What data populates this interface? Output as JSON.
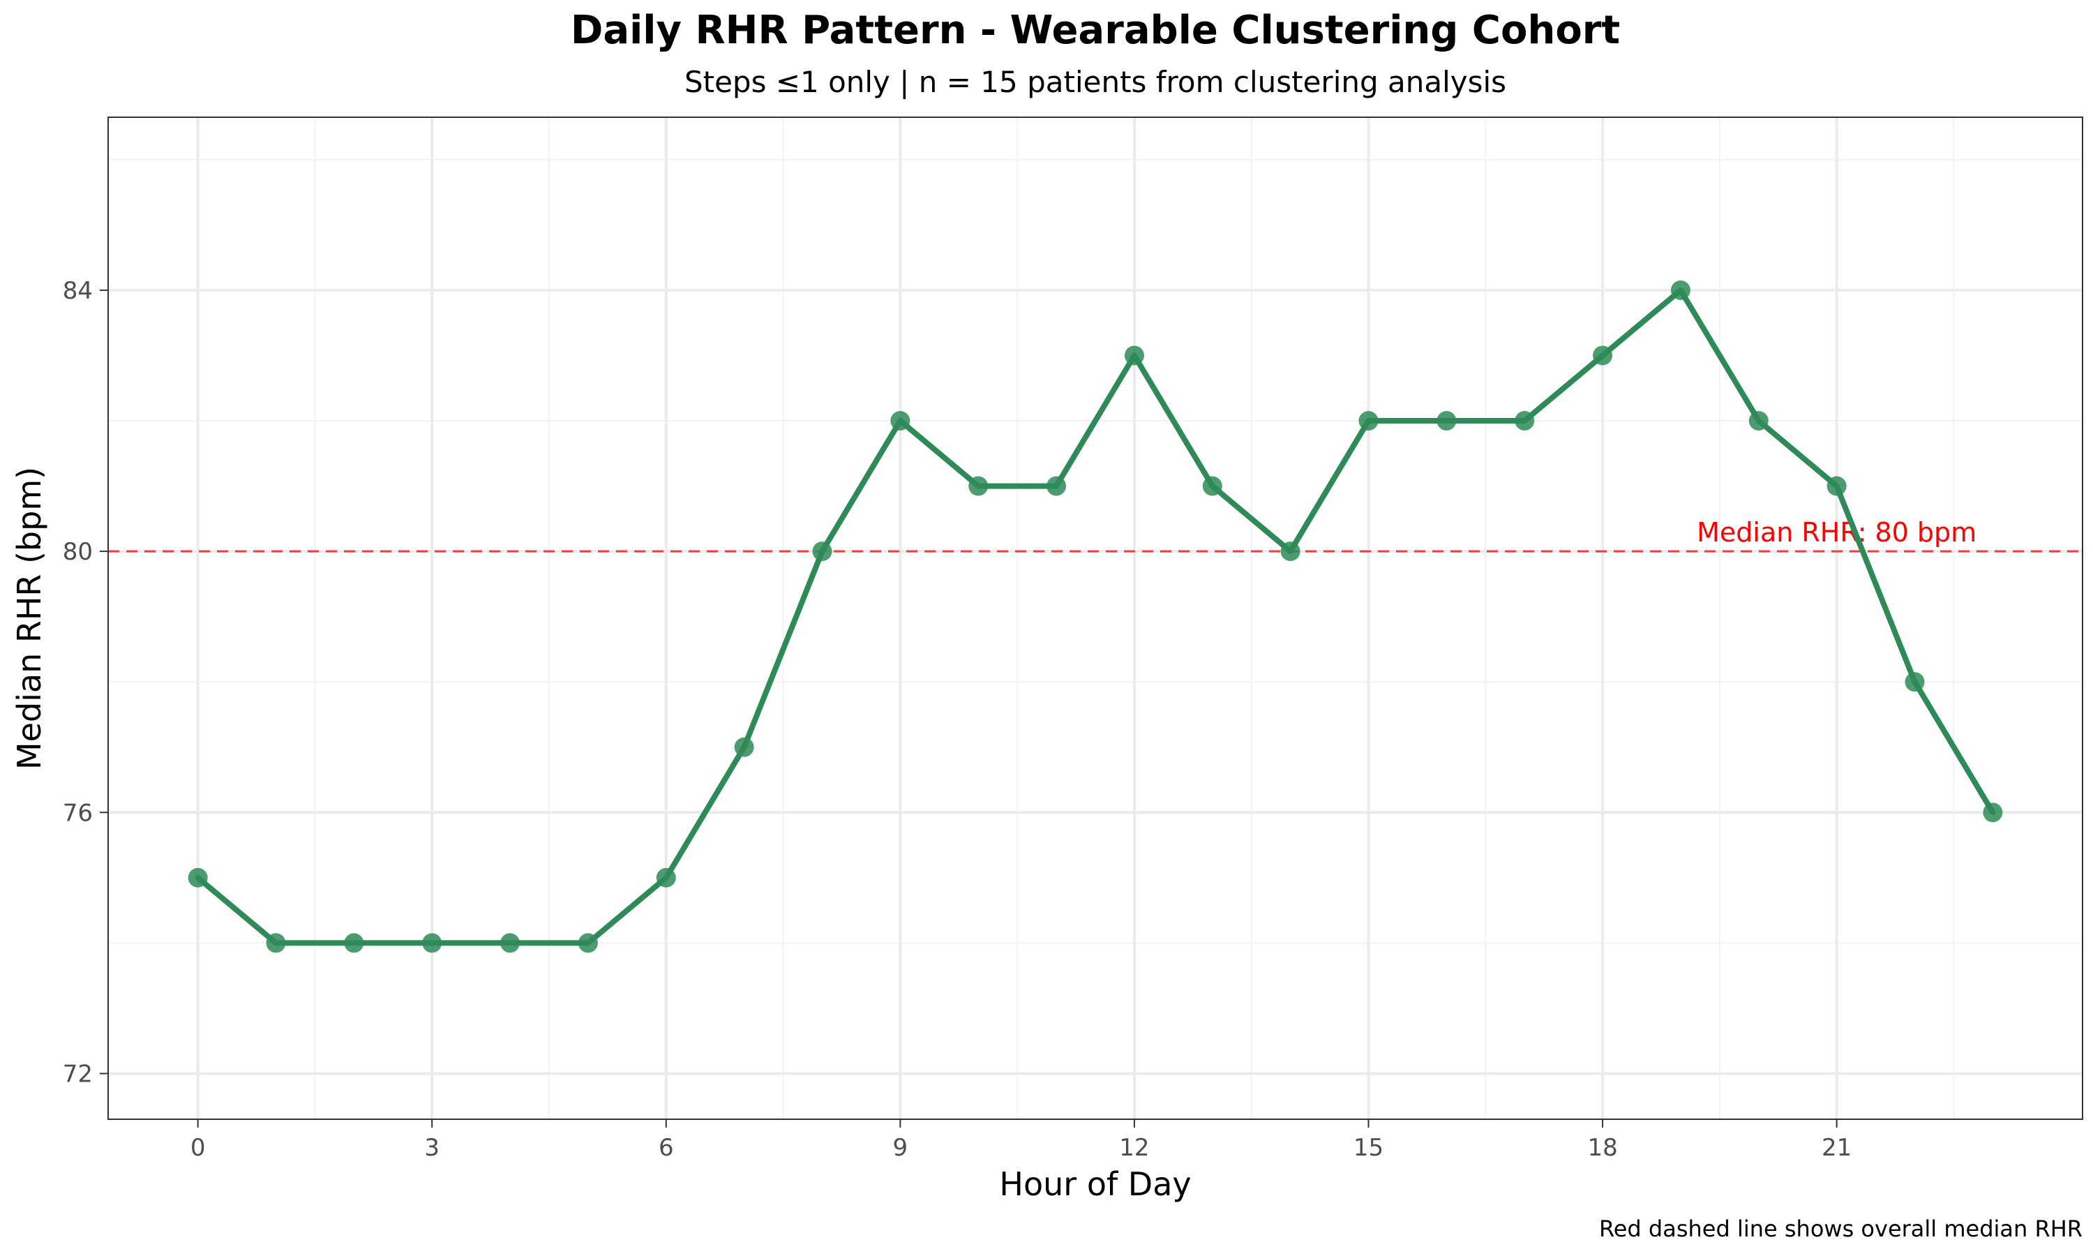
{
  "chart_data": {
    "type": "line",
    "title": "Daily RHR Pattern - Wearable Clustering Cohort",
    "subtitle": "Steps ≤1 only | n = 15 patients from clustering analysis",
    "xlabel": "Hour of Day",
    "ylabel": "Median RHR (bpm)",
    "caption": "Red dashed line shows overall median RHR",
    "x": [
      0,
      1,
      2,
      3,
      4,
      5,
      6,
      7,
      8,
      9,
      10,
      11,
      12,
      13,
      14,
      15,
      16,
      17,
      18,
      19,
      20,
      21,
      22,
      23
    ],
    "series": [
      {
        "values": [
          75,
          74,
          74,
          74,
          74,
          74,
          75,
          77,
          80,
          82,
          81,
          81,
          83,
          81,
          80,
          82,
          82,
          82,
          83,
          84,
          82,
          81,
          78,
          76
        ],
        "color": "#2e8b57"
      }
    ],
    "xlim": [
      -1.15,
      24.15
    ],
    "ylim": [
      71.3,
      86.65
    ],
    "xticks": [
      0,
      3,
      6,
      9,
      12,
      15,
      18,
      21
    ],
    "yticks": [
      72,
      76,
      80,
      84
    ],
    "grid": true,
    "reference_line": {
      "y": 80,
      "label": "Median RHR: 80 bpm",
      "label_x": 21,
      "color": "#ff0000",
      "style": "dashed"
    }
  }
}
